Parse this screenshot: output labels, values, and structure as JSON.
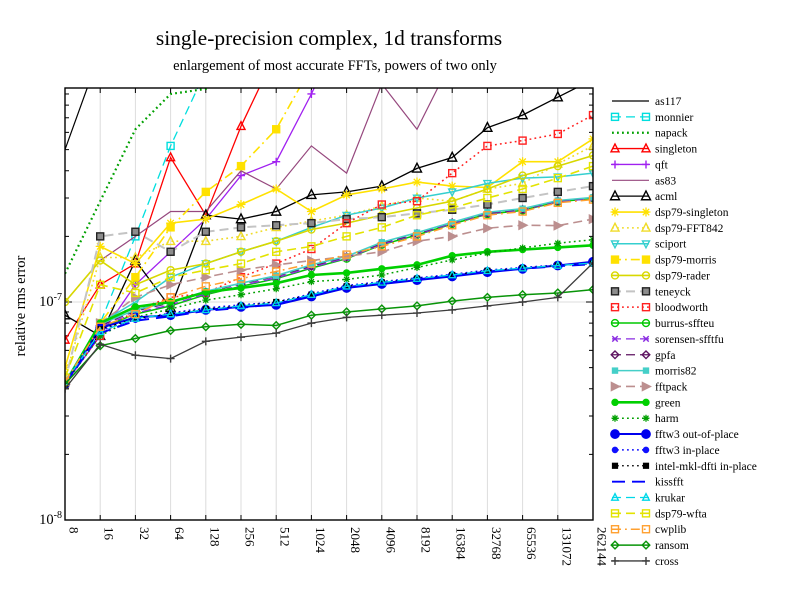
{
  "title": "single-precision complex, 1d transforms",
  "subtitle": "enlargement of most accurate FFTs, powers of two only",
  "y_axis": {
    "label": "relative rms error",
    "ticks": [
      {
        "base": "10",
        "exp": "-8"
      },
      {
        "base": "10",
        "exp": "-7"
      }
    ]
  },
  "x_axis": {
    "tick_labels": [
      "8",
      "16",
      "32",
      "64",
      "128",
      "256",
      "512",
      "1024",
      "2048",
      "4096",
      "8192",
      "16384",
      "32768",
      "65536",
      "131072",
      "262144"
    ]
  },
  "chart_data": {
    "type": "line",
    "title": "single-precision complex, 1d transforms",
    "subtitle": "enlargement of most accurate FFTs, powers of two only",
    "ylabel": "relative rms error",
    "xscale": "log2",
    "yscale": "log10",
    "xlim": [
      8,
      262144
    ],
    "ylim": [
      1e-08,
      9.6e-07
    ],
    "grid": "vertical-at-each-power-of-two, horizontal-at-1e-7",
    "legend_position": "right-outside",
    "x": [
      8,
      16,
      32,
      64,
      128,
      256,
      512,
      1024,
      2048,
      4096,
      8192,
      16384,
      32768,
      65536,
      131072,
      262144
    ],
    "values_unit": "1e-8 relative rms error (values above ~96 exit the top of the plot)",
    "series": [
      {
        "name": "as117",
        "color": "#000000",
        "dash": "solid",
        "marker": "none",
        "filled": false,
        "lw": 1.2,
        "ms": 0,
        "values_e8": [
          50,
          140,
          400,
          1100,
          3000,
          3000,
          3000,
          3000,
          3000,
          3000,
          3000,
          3000,
          3000,
          3000,
          3000,
          3000
        ]
      },
      {
        "name": "monnier",
        "color": "#00dede",
        "dash": "dash",
        "marker": "square",
        "filled": false,
        "lw": 1.3,
        "ms": 3.5,
        "values_e8": [
          4.3,
          8,
          20,
          52,
          115,
          300,
          600,
          900,
          900,
          900,
          900,
          900,
          900,
          900,
          900,
          900
        ]
      },
      {
        "name": "napack",
        "color": "#00a000",
        "dash": "dot",
        "marker": "none",
        "filled": false,
        "lw": 2.2,
        "ms": 0,
        "values_e8": [
          13.5,
          29,
          62,
          90,
          95,
          130,
          300,
          600,
          600,
          600,
          600,
          600,
          600,
          600,
          600,
          600
        ]
      },
      {
        "name": "singleton",
        "color": "#ff0000",
        "dash": "solid",
        "marker": "tri-up",
        "filled": false,
        "lw": 1.3,
        "ms": 4,
        "values_e8": [
          6.7,
          12,
          15,
          46,
          25,
          64,
          140,
          300,
          300,
          300,
          300,
          300,
          300,
          300,
          300,
          300
        ]
      },
      {
        "name": "qft",
        "color": "#a020f0",
        "dash": "solid",
        "marker": "plus",
        "filled": false,
        "lw": 1.3,
        "ms": 4,
        "values_e8": [
          4.2,
          7,
          12,
          17,
          24,
          38,
          44,
          90,
          200,
          400,
          400,
          400,
          400,
          400,
          400,
          400
        ]
      },
      {
        "name": "as83",
        "color": "#96487e",
        "dash": "solid",
        "marker": "none",
        "filled": false,
        "lw": 1.2,
        "ms": 0,
        "values_e8": [
          10,
          15.5,
          20,
          26,
          26,
          40,
          33,
          52,
          39,
          100,
          62,
          130,
          130,
          130,
          130,
          130
        ]
      },
      {
        "name": "acml",
        "color": "#000000",
        "dash": "solid",
        "marker": "tri-up",
        "filled": false,
        "lw": 1.3,
        "ms": 4.5,
        "values_e8": [
          8.7,
          7,
          15.5,
          9.4,
          25,
          24,
          26,
          31,
          32,
          34,
          41,
          46,
          63,
          72,
          87,
          105
        ]
      },
      {
        "name": "dsp79-singleton",
        "color": "#ffe100",
        "dash": "solid",
        "marker": "star",
        "filled": false,
        "lw": 1.6,
        "ms": 4.5,
        "values_e8": [
          5,
          18,
          15,
          23,
          24,
          28,
          33,
          26,
          31,
          33,
          35.5,
          34,
          33.5,
          44,
          44,
          56
        ]
      },
      {
        "name": "dsp79-FFT842",
        "color": "#f0dc28",
        "dash": "dot",
        "marker": "tri-up",
        "filled": false,
        "lw": 1.6,
        "ms": 4,
        "values_e8": [
          4.5,
          16,
          16,
          19,
          19,
          20,
          22,
          23.5,
          25,
          27.5,
          30,
          29,
          33,
          35,
          43,
          52
        ]
      },
      {
        "name": "sciport",
        "color": "#35cfcf",
        "dash": "solid",
        "marker": "tri-down",
        "filled": false,
        "lw": 1.5,
        "ms": 3.5,
        "values_e8": [
          4.3,
          8,
          10,
          13,
          15,
          17,
          19,
          22,
          25,
          27,
          30,
          32,
          35,
          37,
          37.5,
          39
        ]
      },
      {
        "name": "dsp79-morris",
        "color": "#ffe100",
        "dash": "dashdot",
        "marker": "square",
        "filled": true,
        "lw": 1.6,
        "ms": 3.5,
        "values_e8": [
          4.2,
          8,
          13,
          22,
          32,
          42,
          62,
          120,
          250,
          250,
          250,
          250,
          250,
          250,
          250,
          250
        ]
      },
      {
        "name": "dsp79-rader",
        "color": "#d8d800",
        "dash": "solid",
        "marker": "circle",
        "filled": false,
        "lw": 1.6,
        "ms": 3.5,
        "values_e8": [
          10,
          15.5,
          12,
          14,
          15,
          17,
          19,
          21.5,
          23,
          25,
          27,
          29,
          33,
          38,
          42,
          47
        ]
      },
      {
        "name": "teneyck",
        "color": "#c4c4c4",
        "dash": "dash",
        "marker": "square",
        "filled": true,
        "marker_fill": "#8c8c8c",
        "marker_stroke": "#222222",
        "lw": 2,
        "ms": 3.5,
        "values_e8": [
          4.3,
          20,
          21,
          17,
          21,
          22,
          22.5,
          23,
          24,
          24.5,
          25.5,
          26.5,
          28,
          30,
          32,
          34
        ]
      },
      {
        "name": "bloodworth",
        "color": "#ff2020",
        "dash": "dot",
        "marker": "square",
        "filled": false,
        "lw": 1.5,
        "ms": 3.5,
        "values_e8": [
          4.3,
          7,
          9.2,
          10.5,
          11,
          13,
          15,
          17.5,
          23,
          28,
          29,
          39,
          52,
          55,
          59,
          72
        ]
      },
      {
        "name": "burrus-sffteu",
        "color": "#00c800",
        "dash": "solid",
        "marker": "circle",
        "filled": false,
        "lw": 1.5,
        "ms": 3.5,
        "values_e8": [
          4.2,
          7.6,
          8.8,
          9.6,
          10.8,
          11.8,
          12.8,
          14.3,
          15.8,
          18.3,
          20.3,
          22.8,
          25.3,
          26.3,
          28.8,
          29.9
        ]
      },
      {
        "name": "sorensen-sfftfu",
        "color": "#8a2be2",
        "dash": "dash",
        "marker": "x",
        "filled": false,
        "lw": 1.3,
        "ms": 3.5,
        "values_e8": [
          4.2,
          7.7,
          8.9,
          9.7,
          10.9,
          11.9,
          12.9,
          14.4,
          15.9,
          18.4,
          20.4,
          22.9,
          25.4,
          26.4,
          28.9,
          29.8
        ]
      },
      {
        "name": "gpfa",
        "color": "#5e1360",
        "dash": "dash",
        "marker": "diamond",
        "filled": false,
        "lw": 1.3,
        "ms": 3.8,
        "values_e8": [
          4.2,
          7.8,
          9.1,
          9.9,
          11.1,
          12.1,
          13.1,
          14.6,
          16.1,
          18.6,
          20.6,
          23.1,
          25.6,
          26.6,
          29.1,
          30.1
        ]
      },
      {
        "name": "morris82",
        "color": "#45cfc8",
        "dash": "solid",
        "marker": "square",
        "filled": true,
        "lw": 1.6,
        "ms": 2.5,
        "values_e8": [
          4.3,
          7.9,
          9.2,
          10,
          11.2,
          12.2,
          13.2,
          14.8,
          16.2,
          18.8,
          20.8,
          23.2,
          25.8,
          26.8,
          29.2,
          30.2
        ]
      },
      {
        "name": "fftpack",
        "color": "#bc8f8f",
        "dash": "dash",
        "marker": "tri-right",
        "filled": true,
        "lw": 1.6,
        "ms": 4,
        "values_e8": [
          4.2,
          8,
          10.5,
          12,
          13,
          14,
          14.8,
          15.5,
          16.2,
          17,
          19,
          20,
          21.8,
          22.5,
          22.4,
          24
        ]
      },
      {
        "name": "green",
        "color": "#00d000",
        "dash": "solid",
        "marker": "circle",
        "filled": true,
        "lw": 2.6,
        "ms": 3,
        "values_e8": [
          4.2,
          8,
          9.5,
          10,
          11.1,
          11.6,
          12.2,
          13.3,
          13.6,
          14.2,
          14.8,
          16.3,
          17,
          17.4,
          17.8,
          18.2
        ]
      },
      {
        "name": "harm",
        "color": "#00a000",
        "dash": "dot",
        "marker": "star",
        "filled": false,
        "lw": 1.5,
        "ms": 3.5,
        "values_e8": [
          4.2,
          7,
          8.5,
          9.3,
          10.2,
          10.8,
          11.5,
          12.4,
          12.7,
          13.3,
          14.4,
          15.6,
          16.8,
          17.7,
          18.6,
          19.3
        ]
      },
      {
        "name": "fftw3 out-of-place",
        "color": "#0000ee",
        "dash": "solid",
        "marker": "circle",
        "filled": true,
        "lw": 2,
        "ms": 4.2,
        "values_e8": [
          4.2,
          7.6,
          8.5,
          8.7,
          9.2,
          9.5,
          9.7,
          10.6,
          11.6,
          12.1,
          12.6,
          13.1,
          13.7,
          14.2,
          14.7,
          15.3
        ]
      },
      {
        "name": "fftw3 in-place",
        "color": "#1010ff",
        "dash": "dot",
        "marker": "circle",
        "filled": true,
        "lw": 1.5,
        "ms": 2.6,
        "values_e8": [
          4.2,
          7.4,
          8.3,
          8.9,
          9.4,
          9.7,
          10,
          10.9,
          11.9,
          12.4,
          12.9,
          13.4,
          14,
          14.4,
          14.8,
          15
        ]
      },
      {
        "name": "intel-mkl-dfti in-place",
        "color": "#000000",
        "dash": "dot",
        "marker": "square",
        "filled": true,
        "lw": 1.2,
        "ms": 2.4,
        "values_e8": [
          4.2,
          7.5,
          8.4,
          8.8,
          9.3,
          9.6,
          10,
          10.8,
          11.8,
          12.3,
          12.8,
          13.3,
          13.9,
          14.3,
          14.7,
          15
        ]
      },
      {
        "name": "kissfft",
        "color": "#0000ff",
        "dash": "longdash",
        "marker": "none",
        "filled": false,
        "lw": 1.9,
        "ms": 0,
        "values_e8": [
          4.2,
          7.2,
          8.2,
          8.6,
          9.1,
          9.4,
          9.8,
          10.7,
          11.7,
          12.2,
          12.7,
          13.2,
          13.8,
          14.2,
          14.6,
          14.9
        ]
      },
      {
        "name": "krukar",
        "color": "#00d8e8",
        "dash": "dash",
        "marker": "tri-up",
        "filled": false,
        "lw": 1.3,
        "ms": 3.3,
        "values_e8": [
          4.3,
          7.3,
          8.4,
          8.8,
          9.2,
          9.6,
          9.9,
          10.8,
          11.8,
          12.3,
          12.8,
          13.3,
          13.9,
          14.3,
          14.7,
          15.1
        ]
      },
      {
        "name": "dsp79-wfta",
        "color": "#e3e300",
        "dash": "dash",
        "marker": "square",
        "filled": false,
        "lw": 1.6,
        "ms": 3.5,
        "values_e8": [
          4.5,
          12,
          11,
          13,
          14,
          15,
          17,
          18,
          20,
          22,
          25,
          27,
          30,
          33,
          37,
          42
        ]
      },
      {
        "name": "cwplib",
        "color": "#ffa030",
        "dash": "dashdot",
        "marker": "square",
        "filled": false,
        "lw": 1.5,
        "ms": 3.5,
        "values_e8": [
          4.3,
          7.7,
          8.8,
          10.5,
          11.8,
          12.8,
          13.8,
          15,
          16.5,
          18,
          20,
          22.5,
          25,
          26,
          28.5,
          29.5
        ]
      },
      {
        "name": "ransom",
        "color": "#089408",
        "dash": "solid",
        "marker": "diamond",
        "filled": false,
        "lw": 1.5,
        "ms": 3.8,
        "values_e8": [
          4.2,
          6.3,
          6.8,
          7.4,
          7.7,
          7.9,
          7.8,
          8.7,
          9,
          9.3,
          9.6,
          10.1,
          10.5,
          10.8,
          11,
          11.4
        ]
      },
      {
        "name": "cross",
        "color": "#3c3c3c",
        "dash": "solid",
        "marker": "plus",
        "filled": false,
        "lw": 1.3,
        "ms": 4,
        "values_e8": [
          4,
          6.4,
          5.7,
          5.5,
          6.6,
          6.9,
          7.2,
          8,
          8.5,
          8.7,
          8.9,
          9.2,
          9.6,
          10,
          10.5,
          15.1
        ]
      }
    ]
  }
}
